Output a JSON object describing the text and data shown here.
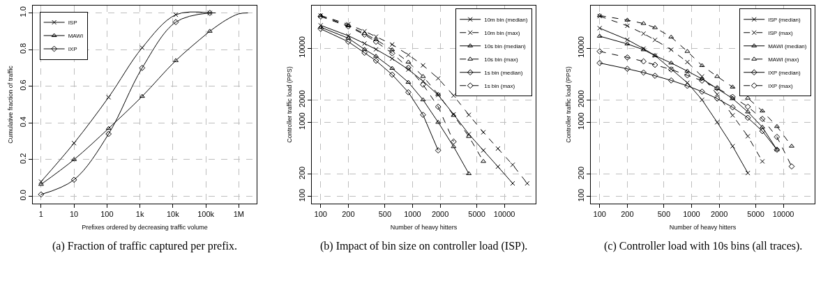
{
  "chart_data": [
    {
      "type": "line",
      "xlabel": "Prefixes ordered by decreasing traffic volume",
      "ylabel": "Cumulative fraction of traffic",
      "annotations": [
        "(a) Fraction of traffic captured per prefix."
      ],
      "log": "x",
      "xlim": [
        0.56,
        3500000
      ],
      "ylim": [
        -0.04,
        1.04
      ],
      "xticks": [
        1,
        10,
        100,
        {
          "value": 1000,
          "label": "1k"
        },
        {
          "value": 10000,
          "label": "10k"
        },
        {
          "value": 100000,
          "label": "100k"
        },
        {
          "value": 1000000,
          "label": "1M"
        }
      ],
      "yticks": [
        {
          "value": 0,
          "label": "0.0"
        },
        {
          "value": 0.2,
          "label": "0.2"
        },
        {
          "value": 0.4,
          "label": "0.4"
        },
        {
          "value": 0.6,
          "label": "0.6"
        },
        {
          "value": 0.8,
          "label": "0.8"
        },
        {
          "value": 1,
          "label": "1.0"
        }
      ],
      "grid": true,
      "legend": "top left",
      "series": [
        {
          "name": "ISP",
          "color": "#000000",
          "marker": "cross",
          "line_style": "solid",
          "x": [
            1,
            10,
            112,
            1170,
            12300,
            132000
          ],
          "values": [
            0.08,
            0.29,
            0.54,
            0.81,
            0.99,
            1.0
          ]
        },
        {
          "name": "MAWI",
          "color": "#000000",
          "marker": "triangle",
          "line_style": "solid",
          "x": [
            1,
            10,
            112,
            1170,
            12300,
            132000
          ],
          "values": [
            0.065,
            0.2,
            0.37,
            0.545,
            0.74,
            0.9
          ]
        },
        {
          "name": "IXP",
          "color": "#000000",
          "marker": "diamond",
          "line_style": "solid",
          "x": [
            1,
            10,
            112,
            1170,
            12300,
            132000
          ],
          "values": [
            0.01,
            0.09,
            0.34,
            0.7,
            0.95,
            1.0
          ]
        },
        {
          "color": "#000000",
          "marker": "none",
          "line_style": "solid",
          "x": [
            132000,
            200000
          ],
          "values": [
            1.0,
            1.0
          ]
        },
        {
          "color": "#000000",
          "marker": "none",
          "line_style": "solid",
          "x": [
            132000,
            400000,
            1000000,
            1900000
          ],
          "values": [
            0.9,
            0.96,
            0.995,
            1.0
          ]
        }
      ]
    },
    {
      "type": "line",
      "xlabel": "Number of heavy hitters",
      "ylabel": "Controller traffic load (PPS)",
      "annotations": [
        "(b) Impact of bin size on controller load (ISP)."
      ],
      "log": "xy",
      "xlim": [
        80,
        21900
      ],
      "ylim": [
        80,
        37500
      ],
      "xticks": [
        100,
        200,
        500,
        1000,
        2000,
        5000,
        10000
      ],
      "yticks": [
        100,
        200,
        1000,
        2000,
        10000
      ],
      "grid": true,
      "legend": "top right",
      "x": [
        100,
        200,
        300,
        400,
        600,
        900,
        1300,
        1900,
        2800,
        4100,
        5900,
        8500,
        12300,
        17700
      ],
      "series": [
        {
          "name": "10m bin (median)",
          "color": "#000000",
          "marker": "cross",
          "line_style": "solid",
          "values": [
            20300,
            14700,
            11550,
            9640,
            7220,
            5150,
            3590,
            2330,
            1280,
            692,
            418,
            252,
            150,
            null
          ]
        },
        {
          "name": "10m bin (max)",
          "color": "#000000",
          "marker": "cross",
          "line_style": "dashed",
          "values": [
            27500,
            21000,
            16900,
            14300,
            11200,
            8110,
            5860,
            3910,
            2290,
            1260,
            733,
            442,
            267,
            150
          ]
        },
        {
          "name": "10s bin (median)",
          "color": "#000000",
          "marker": "triangle",
          "line_style": "solid",
          "values": [
            19150,
            13600,
            9640,
            7770,
            5340,
            3460,
            2010,
            1000,
            469,
            203,
            null,
            null,
            null,
            null
          ]
        },
        {
          "name": "10s bin (max)",
          "color": "#000000",
          "marker": "triangle",
          "line_style": "dashed",
          "values": [
            27500,
            20000,
            15700,
            13000,
            9510,
            6490,
            4150,
            2380,
            1240,
            644,
            297,
            null,
            null,
            null
          ]
        },
        {
          "name": "1s bin (median)",
          "color": "#000000",
          "marker": "diamond",
          "line_style": "solid",
          "values": [
            18200,
            12200,
            8650,
            6770,
            4390,
            2540,
            1260,
            418,
            null,
            null,
            null,
            null,
            null,
            null
          ]
        },
        {
          "name": "1s bin (max)",
          "color": "#000000",
          "marker": "diamond",
          "line_style": "dashed",
          "values": [
            26700,
            19600,
            15200,
            12200,
            8530,
            5450,
            3220,
            1620,
            549,
            null,
            null,
            null,
            null,
            null
          ]
        }
      ]
    },
    {
      "type": "line",
      "xlabel": "Number of heavy hitters",
      "ylabel": "Controller traffic load (PPS)",
      "annotations": [
        "(c) Controller load with 10s bins (all traces)."
      ],
      "log": "xy",
      "xlim": [
        80,
        21900
      ],
      "ylim": [
        80,
        37500
      ],
      "xticks": [
        100,
        200,
        500,
        1000,
        2000,
        5000,
        10000
      ],
      "yticks": [
        100,
        200,
        1000,
        2000,
        10000
      ],
      "grid": true,
      "legend": "top right",
      "x": [
        100,
        200,
        300,
        400,
        600,
        900,
        1300,
        1900,
        2800,
        4100,
        5900,
        8500,
        12300
      ],
      "series": [
        {
          "name": "ISP (median)",
          "color": "#000000",
          "marker": "cross",
          "line_style": "solid",
          "values": [
            18600,
            13000,
            9860,
            7940,
            5220,
            3410,
            2010,
            1000,
            476,
            207,
            null,
            null,
            null
          ]
        },
        {
          "name": "ISP (max)",
          "color": "#000000",
          "marker": "cross",
          "line_style": "dashed",
          "values": [
            27000,
            20000,
            15700,
            12900,
            9510,
            6490,
            4150,
            2380,
            1240,
            648,
            297,
            null,
            null
          ]
        },
        {
          "name": "MAWI (median)",
          "color": "#000000",
          "marker": "triangle",
          "line_style": "solid",
          "values": [
            14500,
            11400,
            9510,
            7940,
            6300,
            4900,
            3850,
            2850,
            2090,
            1380,
            860,
            427,
            null
          ]
        },
        {
          "name": "MAWI (max)",
          "color": "#000000",
          "marker": "triangle",
          "line_style": "dashed",
          "values": [
            27500,
            23900,
            21500,
            18900,
            14100,
            9040,
            5820,
            4150,
            2990,
            2120,
            1420,
            879,
            476
          ]
        },
        {
          "name": "IXP (median)",
          "color": "#000000",
          "marker": "diamond",
          "line_style": "solid",
          "values": [
            6300,
            5260,
            4690,
            4240,
            3670,
            3100,
            2590,
            2090,
            1590,
            1150,
            760,
            427,
            null
          ]
        },
        {
          "name": "IXP (max)",
          "color": "#000000",
          "marker": "diamond",
          "line_style": "dashed",
          "values": [
            9040,
            7490,
            6630,
            5950,
            5150,
            4300,
            3640,
            2890,
            2200,
            1620,
            1110,
            635,
            254
          ]
        }
      ]
    }
  ]
}
